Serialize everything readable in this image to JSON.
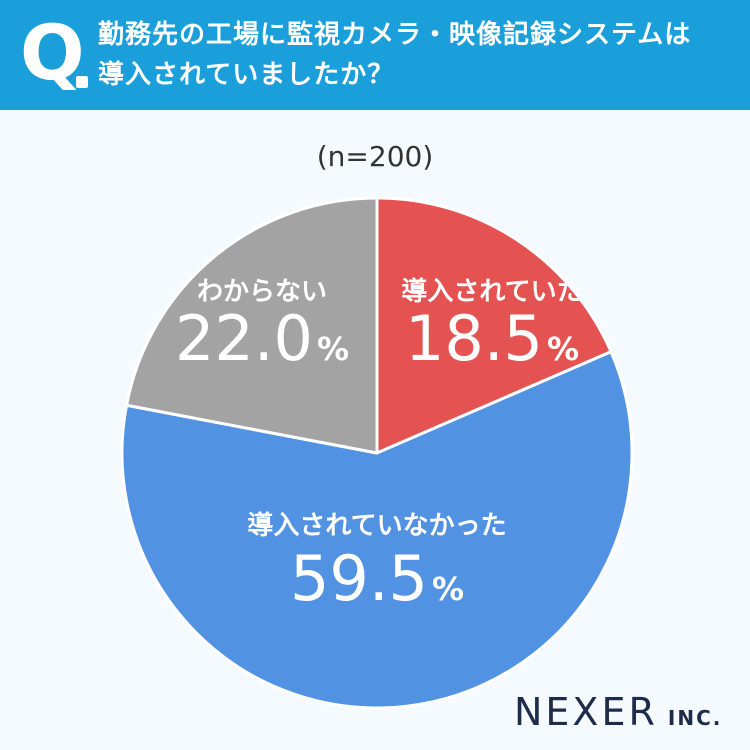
{
  "header": {
    "q": "Q",
    "line1": "勤務先の工場に監視カメラ・映像記録システムは",
    "line2": "導入されていましたか？"
  },
  "sample_size": "(n=200)",
  "chart_data": {
    "type": "pie",
    "unit": "%",
    "slices": [
      {
        "label": "導入されていた",
        "value": 18.5,
        "value_text": "18.5",
        "color": "#e55252"
      },
      {
        "label": "導入されていなかった",
        "value": 59.5,
        "value_text": "59.5",
        "color": "#5192e3"
      },
      {
        "label": "わからない",
        "value": 22.0,
        "value_text": "22.0",
        "color": "#a3a3a3"
      }
    ]
  },
  "logo": {
    "main": "NEXER",
    "sub": "INC."
  }
}
